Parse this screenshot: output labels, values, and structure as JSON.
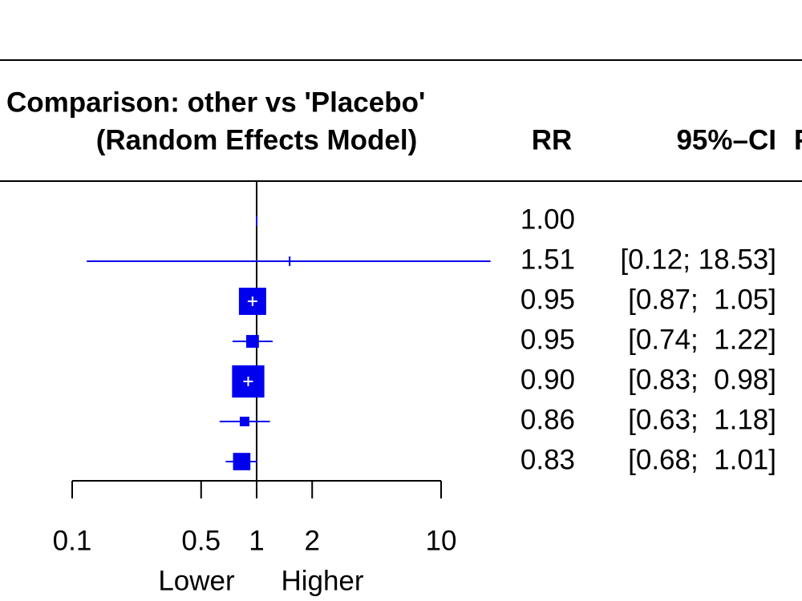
{
  "chart_data": {
    "type": "forest",
    "title": [
      "Comparison: other vs 'Placebo'",
      "(Random Effects Model)"
    ],
    "columns": [
      "RR",
      "95%–CI",
      "P"
    ],
    "values": [
      1,
      1.51,
      0.95,
      0.95,
      0.9,
      0.86,
      0.83
    ],
    "value_labels": [
      "1.00",
      "1.51",
      "0.95",
      "0.95",
      "0.90",
      "0.86",
      "0.83"
    ],
    "lower": [
      null,
      0.12,
      0.87,
      0.74,
      0.83,
      0.63,
      0.68
    ],
    "upper": [
      null,
      18.53,
      1.05,
      1.22,
      0.98,
      1.18,
      1.01
    ],
    "ci_labels": [
      null,
      "[0.12; 18.53]",
      "[0.87;  1.05]",
      "[0.74;  1.22]",
      "[0.83;  0.98]",
      "[0.63;  1.18]",
      "[0.68;  1.01]"
    ],
    "weights": [
      0,
      0.1,
      32,
      7,
      45,
      4,
      13
    ],
    "color": "#0000ee",
    "xscale": "log",
    "xlim": [
      0.1,
      10
    ],
    "xticks": [
      0.1,
      0.5,
      1,
      2,
      10
    ],
    "reference": 1,
    "xlabels": [
      "Lower",
      "Higher"
    ]
  }
}
